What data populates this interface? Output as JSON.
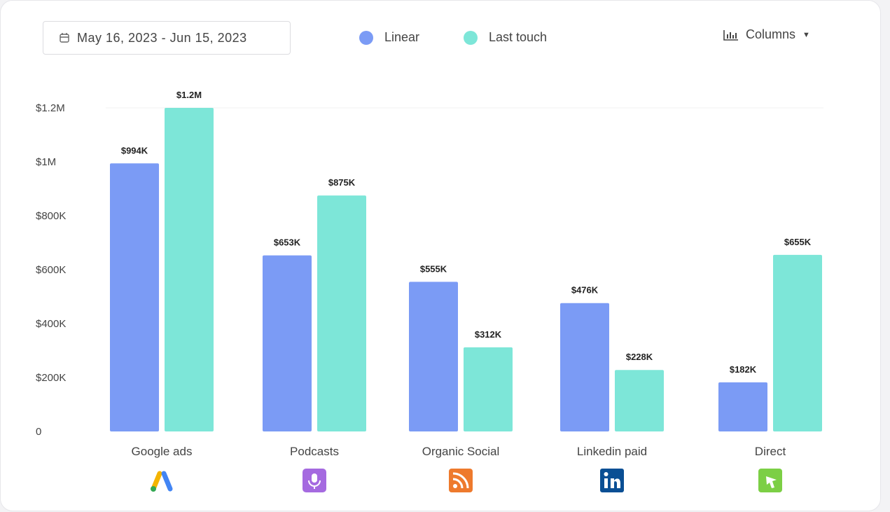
{
  "date_range": "May 16, 2023 - Jun 15, 2023",
  "view_selector": {
    "label": "Columns",
    "icon": "bar-chart-icon"
  },
  "chart_data": {
    "type": "bar",
    "categories": [
      "Google ads",
      "Podcasts",
      "Organic Social",
      "Linkedin paid",
      "Direct"
    ],
    "category_icons": [
      "google-ads-icon",
      "podcast-icon",
      "rss-icon",
      "linkedin-icon",
      "direct-cursor-icon"
    ],
    "series": [
      {
        "name": "Linear",
        "color": "#7b9bf5",
        "values": [
          994000,
          653000,
          555000,
          476000,
          182000
        ],
        "labels": [
          "$994K",
          "$653K",
          "$555K",
          "$476K",
          "$182K"
        ]
      },
      {
        "name": "Last touch",
        "color": "#7de6d8",
        "values": [
          1200000,
          875000,
          312000,
          228000,
          655000
        ],
        "labels": [
          "$1.2M",
          "$875K",
          "$312K",
          "$228K",
          "$655K"
        ]
      }
    ],
    "ylim": [
      0,
      1200000
    ],
    "yticks": [
      0,
      200000,
      400000,
      600000,
      800000,
      1000000,
      1200000
    ],
    "ytick_labels": [
      "0",
      "$200K",
      "$400K",
      "$600K",
      "$800K",
      "$1M",
      "$1.2M"
    ],
    "legend": "top-center",
    "grid": false
  }
}
